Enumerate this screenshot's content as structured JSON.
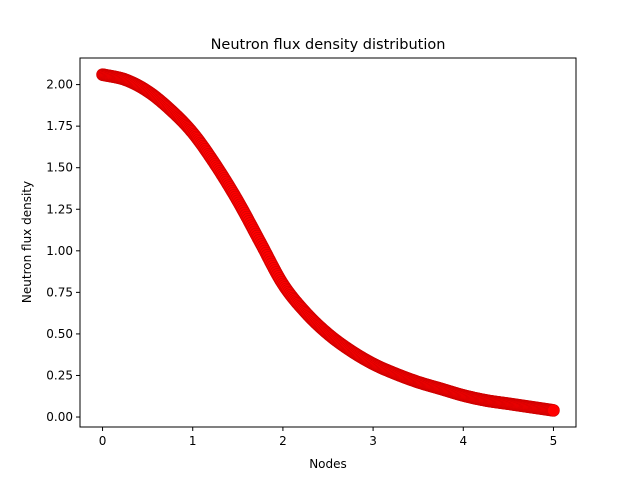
{
  "chart_data": {
    "type": "scatter",
    "title": "Neutron flux density distribution",
    "xlabel": "Nodes",
    "ylabel": "Neutron flux density",
    "xlim": [
      -0.25,
      5.25
    ],
    "ylim": [
      -0.06,
      2.16
    ],
    "xticks": [
      0,
      1,
      2,
      3,
      4,
      5
    ],
    "xtick_labels": [
      "0",
      "1",
      "2",
      "3",
      "4",
      "5"
    ],
    "yticks": [
      0.0,
      0.25,
      0.5,
      0.75,
      1.0,
      1.25,
      1.5,
      1.75,
      2.0
    ],
    "ytick_labels": [
      "0.00",
      "0.25",
      "0.50",
      "0.75",
      "1.00",
      "1.25",
      "1.50",
      "1.75",
      "2.00"
    ],
    "grid": false,
    "marker_color": "#ff0000",
    "series": [
      {
        "x": [
          0.0,
          0.25,
          0.5,
          0.75,
          1.0,
          1.25,
          1.5,
          1.75,
          2.0,
          2.25,
          2.5,
          2.75,
          3.0,
          3.25,
          3.5,
          3.75,
          4.0,
          4.25,
          4.5,
          4.75,
          5.0
        ],
        "y": [
          2.06,
          2.03,
          1.96,
          1.85,
          1.71,
          1.52,
          1.3,
          1.05,
          0.8,
          0.63,
          0.5,
          0.4,
          0.32,
          0.26,
          0.21,
          0.17,
          0.13,
          0.1,
          0.08,
          0.06,
          0.04
        ]
      }
    ]
  }
}
